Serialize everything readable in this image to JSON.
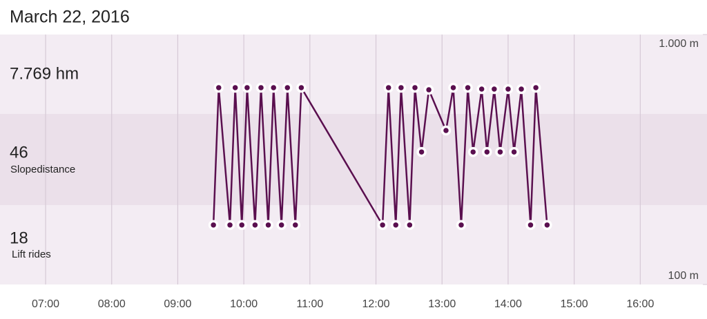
{
  "header": {
    "date": "March 22, 2016"
  },
  "stats": {
    "distance": "7.769 hm",
    "slopes": "46",
    "slopes_label": "Slopedistance",
    "lifts": "18",
    "lifts_label": "Lift rides"
  },
  "chart_data": {
    "type": "line",
    "color": "#5a0f4f",
    "grid": true,
    "log_scale": true,
    "x": [
      9.54,
      9.62,
      9.79,
      9.87,
      9.97,
      10.05,
      10.17,
      10.26,
      10.37,
      10.45,
      10.57,
      10.66,
      10.78,
      10.87,
      12.1,
      12.19,
      12.3,
      12.38,
      12.51,
      12.59,
      12.69,
      12.8,
      13.06,
      13.17,
      13.29,
      13.39,
      13.47,
      13.6,
      13.68,
      13.79,
      13.88,
      14.0,
      14.09,
      14.2,
      14.34,
      14.42,
      14.59
    ],
    "values": [
      173,
      613,
      173,
      613,
      173,
      613,
      173,
      613,
      173,
      613,
      173,
      613,
      173,
      613,
      173,
      613,
      173,
      613,
      173,
      613,
      339,
      601,
      413,
      613,
      173,
      613,
      339,
      605,
      339,
      605,
      339,
      605,
      339,
      605,
      173,
      613,
      173
    ],
    "xlim": [
      6.31,
      17.01
    ],
    "xticks": [
      {
        "value": 7,
        "label": "07:00"
      },
      {
        "value": 8,
        "label": "08:00"
      },
      {
        "value": 9,
        "label": "09:00"
      },
      {
        "value": 10,
        "label": "10:00"
      },
      {
        "value": 11,
        "label": "11:00"
      },
      {
        "value": 12,
        "label": "12:00"
      },
      {
        "value": 13,
        "label": "13:00"
      },
      {
        "value": 14,
        "label": "14:00"
      },
      {
        "value": 15,
        "label": "15:00"
      },
      {
        "value": 16,
        "label": "16:00"
      }
    ],
    "ylim": [
      100,
      1000
    ],
    "yticks": [
      {
        "value": 1000,
        "label": "1.000 m"
      },
      {
        "value": 100,
        "label": "100 m"
      }
    ]
  }
}
